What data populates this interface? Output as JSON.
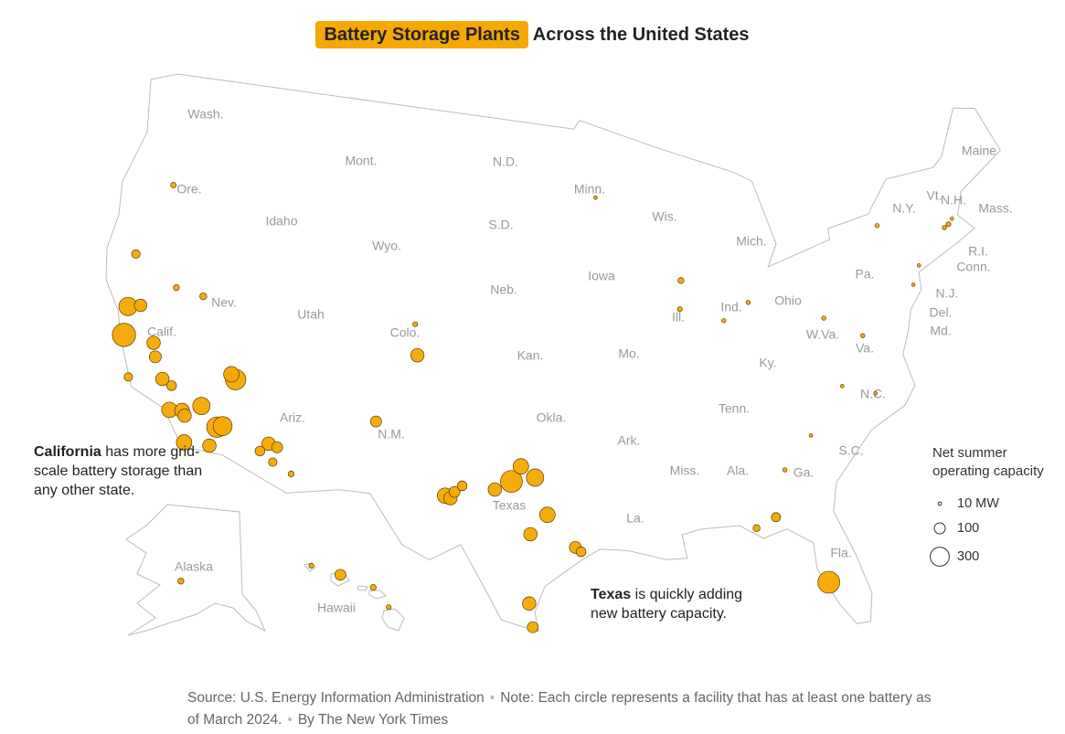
{
  "chart_data": {
    "type": "map",
    "title_highlight": "Battery Storage Plants",
    "title_rest": "Across the United States",
    "plants": [
      {
        "lon": -121.78,
        "lat": 36.8,
        "capacity_mw": 450
      },
      {
        "lon": -122.0,
        "lat": 38.1,
        "capacity_mw": 280
      },
      {
        "lon": -121.3,
        "lat": 38.3,
        "capacity_mw": 130
      },
      {
        "lon": -120.0,
        "lat": 36.8,
        "capacity_mw": 150
      },
      {
        "lon": -119.7,
        "lat": 36.2,
        "capacity_mw": 120
      },
      {
        "lon": -119.0,
        "lat": 35.3,
        "capacity_mw": 150
      },
      {
        "lon": -118.2,
        "lat": 34.0,
        "capacity_mw": 200
      },
      {
        "lon": -117.5,
        "lat": 34.1,
        "capacity_mw": 180
      },
      {
        "lon": -117.3,
        "lat": 33.9,
        "capacity_mw": 150
      },
      {
        "lon": -115.4,
        "lat": 33.7,
        "capacity_mw": 350
      },
      {
        "lon": -115.1,
        "lat": 33.8,
        "capacity_mw": 300
      },
      {
        "lon": -116.5,
        "lat": 34.5,
        "capacity_mw": 250
      },
      {
        "lon": -117.0,
        "lat": 32.7,
        "capacity_mw": 200
      },
      {
        "lon": -115.6,
        "lat": 32.8,
        "capacity_mw": 150
      },
      {
        "lon": -118.4,
        "lat": 35.1,
        "capacity_mw": 80
      },
      {
        "lon": -120.9,
        "lat": 35.0,
        "capacity_mw": 60
      },
      {
        "lon": -122.4,
        "lat": 40.5,
        "capacity_mw": 60
      },
      {
        "lon": -114.9,
        "lat": 36.0,
        "capacity_mw": 350
      },
      {
        "lon": -115.2,
        "lat": 36.2,
        "capacity_mw": 200
      },
      {
        "lon": -117.8,
        "lat": 39.4,
        "capacity_mw": 40
      },
      {
        "lon": -119.5,
        "lat": 39.5,
        "capacity_mw": 30
      },
      {
        "lon": -112.4,
        "lat": 33.4,
        "capacity_mw": 150
      },
      {
        "lon": -111.9,
        "lat": 33.3,
        "capacity_mw": 100
      },
      {
        "lon": -112.8,
        "lat": 33.0,
        "capacity_mw": 80
      },
      {
        "lon": -112.0,
        "lat": 32.6,
        "capacity_mw": 60
      },
      {
        "lon": -110.9,
        "lat": 32.2,
        "capacity_mw": 30
      },
      {
        "lon": -106.6,
        "lat": 35.1,
        "capacity_mw": 100
      },
      {
        "lon": -104.6,
        "lat": 38.3,
        "capacity_mw": 150
      },
      {
        "lon": -104.9,
        "lat": 39.7,
        "capacity_mw": 20
      },
      {
        "lon": -102.4,
        "lat": 32.0,
        "capacity_mw": 200
      },
      {
        "lon": -102.1,
        "lat": 31.9,
        "capacity_mw": 150
      },
      {
        "lon": -101.9,
        "lat": 32.2,
        "capacity_mw": 100
      },
      {
        "lon": -101.5,
        "lat": 32.5,
        "capacity_mw": 80
      },
      {
        "lon": -99.7,
        "lat": 32.4,
        "capacity_mw": 150
      },
      {
        "lon": -98.3,
        "lat": 33.5,
        "capacity_mw": 200
      },
      {
        "lon": -97.5,
        "lat": 33.0,
        "capacity_mw": 250
      },
      {
        "lon": -98.8,
        "lat": 32.8,
        "capacity_mw": 400
      },
      {
        "lon": -95.3,
        "lat": 29.8,
        "capacity_mw": 120
      },
      {
        "lon": -95.0,
        "lat": 29.6,
        "capacity_mw": 80
      },
      {
        "lon": -96.8,
        "lat": 31.3,
        "capacity_mw": 200
      },
      {
        "lon": -97.7,
        "lat": 30.4,
        "capacity_mw": 150
      },
      {
        "lon": -97.7,
        "lat": 27.2,
        "capacity_mw": 150
      },
      {
        "lon": -97.5,
        "lat": 26.1,
        "capacity_mw": 100
      },
      {
        "lon": -82.2,
        "lat": 27.3,
        "capacity_mw": 400
      },
      {
        "lon": -84.5,
        "lat": 30.6,
        "capacity_mw": 70
      },
      {
        "lon": -85.6,
        "lat": 30.2,
        "capacity_mw": 40
      },
      {
        "lon": -121.3,
        "lat": 44.0,
        "capacity_mw": 25
      },
      {
        "lon": -71.5,
        "lat": 42.3,
        "capacity_mw": 20
      },
      {
        "lon": -71.8,
        "lat": 42.2,
        "capacity_mw": 15
      },
      {
        "lon": -71.2,
        "lat": 42.5,
        "capacity_mw": 10
      },
      {
        "lon": -73.9,
        "lat": 40.8,
        "capacity_mw": 10
      },
      {
        "lon": -75.9,
        "lat": 43.0,
        "capacity_mw": 15
      },
      {
        "lon": -74.5,
        "lat": 40.0,
        "capacity_mw": 10
      },
      {
        "lon": -88.6,
        "lat": 41.8,
        "capacity_mw": 30
      },
      {
        "lon": -88.8,
        "lat": 40.5,
        "capacity_mw": 20
      },
      {
        "lon": -86.2,
        "lat": 39.8,
        "capacity_mw": 15
      },
      {
        "lon": -84.6,
        "lat": 40.5,
        "capacity_mw": 15
      },
      {
        "lon": -80.2,
        "lat": 39.3,
        "capacity_mw": 15
      },
      {
        "lon": -78.1,
        "lat": 38.2,
        "capacity_mw": 15
      },
      {
        "lon": -78.0,
        "lat": 35.5,
        "capacity_mw": 10
      },
      {
        "lon": -79.8,
        "lat": 36.1,
        "capacity_mw": 10
      },
      {
        "lon": -93.8,
        "lat": 45.8,
        "capacity_mw": 10
      },
      {
        "lon": -83.7,
        "lat": 32.7,
        "capacity_mw": 15
      },
      {
        "lon": -82.0,
        "lat": 34.1,
        "capacity_mw": 10
      },
      {
        "lon": -158.0,
        "lat": 21.5,
        "capacity_mw": 100
      },
      {
        "lon": -156.3,
        "lat": 20.8,
        "capacity_mw": 30
      },
      {
        "lon": -159.5,
        "lat": 22.0,
        "capacity_mw": 20
      },
      {
        "lon": -155.5,
        "lat": 19.7,
        "capacity_mw": 20
      },
      {
        "lon": -149.9,
        "lat": 61.2,
        "capacity_mw": 30
      }
    ],
    "state_labels": [
      "Wash.",
      "Ore.",
      "Calif.",
      "Idaho",
      "Nev.",
      "Mont.",
      "Wyo.",
      "Utah",
      "Colo.",
      "Ariz.",
      "N.M.",
      "N.D.",
      "S.D.",
      "Neb.",
      "Kan.",
      "Okla.",
      "Texas",
      "Minn.",
      "Iowa",
      "Mo.",
      "Ark.",
      "La.",
      "Wis.",
      "Ill.",
      "Mich.",
      "Ind.",
      "Ohio",
      "Ky.",
      "Tenn.",
      "Miss.",
      "Ala.",
      "Ga.",
      "Fla.",
      "S.C.",
      "N.C.",
      "Va.",
      "W.Va.",
      "Pa.",
      "N.Y.",
      "Vt.",
      "N.H.",
      "Maine",
      "Mass.",
      "R.I.",
      "Conn.",
      "N.J.",
      "Del.",
      "Md.",
      "Alaska",
      "Hawaii"
    ],
    "annotations": [
      {
        "bold": "California",
        "text": "has more grid-scale battery storage than any other state."
      },
      {
        "bold": "Texas",
        "text": "is quickly adding new battery capacity."
      }
    ],
    "legend": {
      "title": "Net summer operating capacity",
      "sizes": [
        {
          "value": 10,
          "label": "10 MW"
        },
        100,
        300
      ]
    },
    "source": "Source: U.S. Energy Information Administration",
    "note": "Note: Each circle represents a facility that has at least one battery as of March 2024.",
    "credit": "By The New York Times"
  }
}
